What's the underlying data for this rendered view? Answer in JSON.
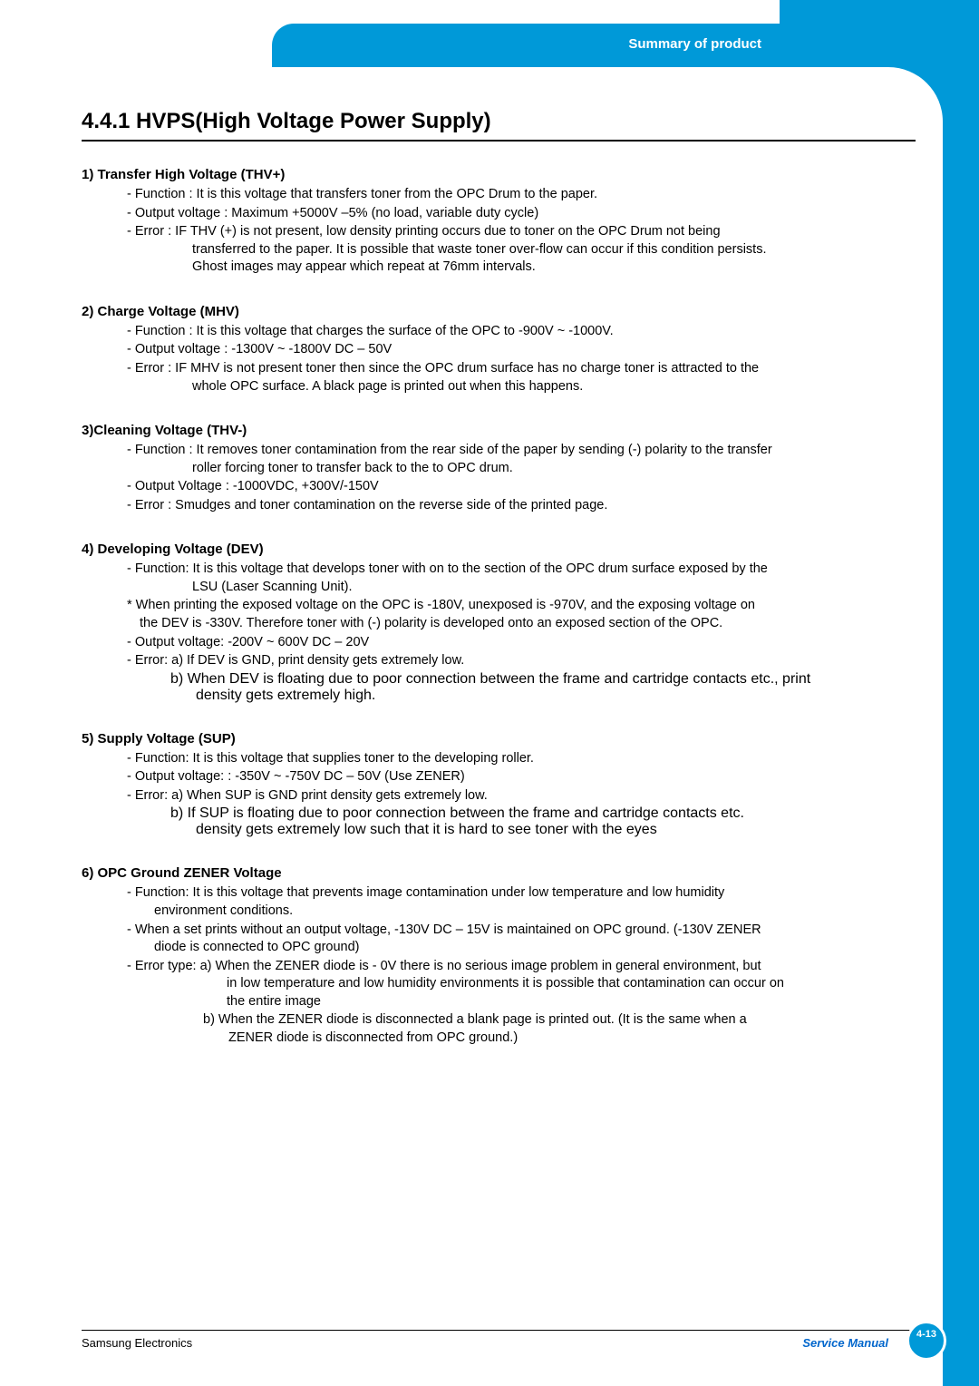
{
  "header": {
    "tab_label": "Summary of product"
  },
  "section": {
    "title": "4.4.1 HVPS(High Voltage Power Supply)"
  },
  "subs": [
    {
      "heading": "1) Transfer High Voltage (THV+)",
      "lines": [
        {
          "t": "- Function : It is this voltage that transfers toner from the OPC Drum to the paper."
        },
        {
          "t": "- Output voltage : Maximum +5000V –5% (no load, variable duty cycle)"
        },
        {
          "t": "- Error : IF THV (+) is not present, low density printing occurs due to toner on the OPC Drum not being",
          "cont": [
            "transferred to the paper. It is possible that waste toner over-flow can occur if this condition persists.",
            "Ghost images may appear which repeat at 76mm intervals."
          ]
        }
      ]
    },
    {
      "heading": "2) Charge Voltage (MHV)",
      "lines": [
        {
          "t": "- Function : It is this voltage that charges the surface of the OPC to -900V ~ -1000V."
        },
        {
          "t": "- Output voltage : -1300V ~ -1800V DC – 50V"
        },
        {
          "t": "- Error : IF MHV is not present toner then since the OPC drum surface has no charge toner is attracted to the",
          "cont": [
            "whole OPC surface. A black page is printed out when this happens."
          ]
        }
      ]
    },
    {
      "heading": "3)Cleaning Voltage (THV-)",
      "lines": [
        {
          "t": "- Function : It removes toner contamination from the rear side of the paper by sending (-) polarity to the transfer",
          "cont": [
            "roller forcing toner to transfer back to the to OPC drum."
          ]
        },
        {
          "t": "- Output Voltage : -1000VDC, +300V/-150V"
        },
        {
          "t": "- Error : Smudges and toner contamination on the reverse side of the printed page."
        }
      ]
    },
    {
      "heading": "4) Developing Voltage (DEV)",
      "lines": [
        {
          "t": "- Function: It is this voltage that develops toner with on to the section of the OPC drum surface exposed by the",
          "cont": [
            "LSU (Laser Scanning Unit)."
          ]
        },
        {
          "t": "* When printing the exposed voltage on the OPC is -180V, unexposed is -970V, and the exposing voltage on",
          "cont3": [
            "the DEV is -330V. Therefore toner with (-) polarity is developed onto an exposed section of the OPC."
          ]
        },
        {
          "t": "- Output voltage: -200V ~ 600V DC – 20V"
        },
        {
          "t": "- Error: a) If DEV is GND, print density gets extremely low."
        },
        {
          "sub": "b) When DEV is floating due to poor connection between the frame and cartridge contacts etc., print",
          "lcont": [
            "density gets extremely high."
          ]
        }
      ]
    },
    {
      "heading": "5) Supply Voltage (SUP)",
      "lines": [
        {
          "t": "- Function: It is this voltage that supplies toner to the developing roller."
        },
        {
          "t": "- Output voltage: : -350V ~ -750V DC – 50V (Use ZENER)"
        },
        {
          "t": "- Error: a) When SUP is GND print density gets extremely low."
        },
        {
          "sub": "b) If SUP is floating due to poor connection between the frame and cartridge contacts etc.",
          "lcont": [
            "density gets extremely low such that it is hard to see toner with the eyes"
          ]
        }
      ]
    },
    {
      "heading": "6) OPC Ground ZENER Voltage",
      "lines": [
        {
          "t": "- Function: It is this voltage that prevents image contamination under low temperature and low humidity",
          "cont2": [
            "environment conditions."
          ]
        },
        {
          "t": "- When a set prints without an output voltage, -130V DC – 15V is maintained on OPC ground. (-130V ZENER",
          "cont2": [
            "diode is connected to OPC ground)"
          ]
        },
        {
          "t": "- Error type: a) When the ZENER diode is - 0V there is no serious image problem in general environment, but",
          "contErr": [
            "in low temperature and low humidity environments it is possible that contamination can occur on",
            "the entire image"
          ]
        },
        {
          "subErr": "b) When the ZENER diode is disconnected a blank page is printed out. (It is the same when a",
          "lcontErr": [
            "ZENER diode is disconnected from OPC ground.)"
          ]
        }
      ]
    }
  ],
  "footer": {
    "left": "Samsung Electronics",
    "right": "Service Manual",
    "page": "4-13"
  },
  "colors": {
    "brand_blue": "#0099d8",
    "link_blue": "#0066cc",
    "text": "#000000",
    "white": "#ffffff"
  },
  "typography": {
    "title_fontsize": 24,
    "subheading_fontsize": 15,
    "body_fontsize": 14.5,
    "footer_fontsize": 13
  }
}
